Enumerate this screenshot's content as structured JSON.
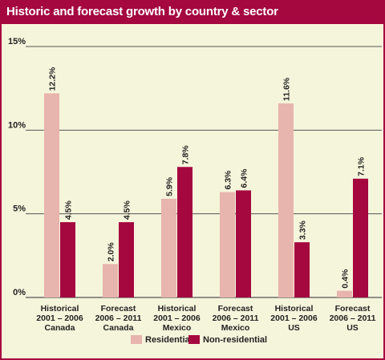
{
  "chart_data": {
    "type": "bar",
    "title": "Historic and forecast growth by country & sector",
    "categories": [
      [
        "Historical",
        "2001 – 2006",
        "Canada"
      ],
      [
        "Forecast",
        "2006 – 2011",
        "Canada"
      ],
      [
        "Historical",
        "2001 – 2006",
        "Mexico"
      ],
      [
        "Forecast",
        "2006 – 2011",
        "Mexico"
      ],
      [
        "Historical",
        "2001 – 2006",
        "US"
      ],
      [
        "Forecast",
        "2006 – 2011",
        "US"
      ]
    ],
    "series": [
      {
        "name": "Residential",
        "color": "#e8b4ae",
        "values": [
          12.2,
          2.0,
          5.9,
          6.3,
          11.6,
          0.4
        ],
        "labels": [
          "12.2%",
          "2.0%",
          "5.9%",
          "6.3%",
          "11.6%",
          "0.4%"
        ]
      },
      {
        "name": "Non-residential",
        "color": "#a5073f",
        "values": [
          4.5,
          4.5,
          7.8,
          6.4,
          3.3,
          7.1
        ],
        "labels": [
          "4.5%",
          "4.5%",
          "7.8%",
          "6.4%",
          "3.3%",
          "7.1%"
        ]
      }
    ],
    "yticks": [
      {
        "value": 0,
        "label": "0%"
      },
      {
        "value": 5,
        "label": "5%"
      },
      {
        "value": 10,
        "label": "10%"
      },
      {
        "value": 15,
        "label": "15%"
      }
    ],
    "ylim": [
      0,
      15
    ],
    "grid": true,
    "legend": "bottom-center",
    "colors": {
      "accent": "#a5073f",
      "background": "#f5f5dc",
      "grid": "#555555"
    }
  }
}
